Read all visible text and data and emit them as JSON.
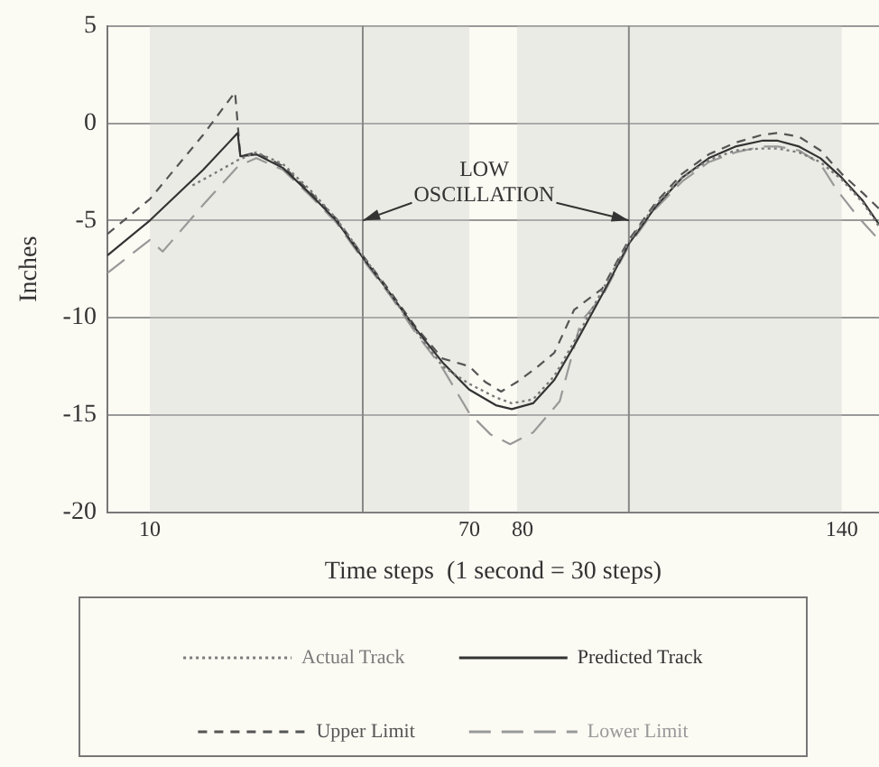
{
  "chart_data": {
    "type": "line",
    "xlabel": "Time steps  (1 second = 30 steps)",
    "ylabel": "Inches",
    "xlim": [
      2,
      147
    ],
    "xticks": [
      10,
      70,
      80,
      140
    ],
    "ylim": [
      -20,
      5
    ],
    "yticks": [
      5,
      0,
      -5,
      -10,
      -15,
      -20
    ],
    "grid": "y",
    "legend": "bottom",
    "marker": "none",
    "annotations": [
      {
        "text": "LOW OSCILLATION",
        "x": 50,
        "y": -5
      }
    ],
    "ref_lines": [
      {
        "axis": "x",
        "value": 50,
        "color": "#888888"
      },
      {
        "axis": "x",
        "value": 100,
        "color": "#888888"
      }
    ],
    "bands": [
      {
        "axis": "x",
        "from": 10,
        "to": 70,
        "color": "#cfcfcb"
      },
      {
        "axis": "x",
        "from": 79,
        "to": 140,
        "color": "#cfcfcb"
      }
    ],
    "series": [
      {
        "name": "Actual Track",
        "color": "#7a7a7a",
        "line_style": "dotted",
        "x": [
          18,
          22,
          26.5,
          30,
          35,
          40,
          45,
          50,
          55,
          60,
          65,
          70,
          75,
          78,
          82,
          86,
          90,
          95,
          100,
          105,
          110,
          115,
          120,
          125,
          128,
          132,
          136,
          140,
          144,
          147
        ],
        "values": [
          -3.2,
          -2.6,
          -1.9,
          -1.5,
          -2.1,
          -3.4,
          -4.9,
          -6.8,
          -8.7,
          -10.7,
          -12.5,
          -13.4,
          -14.1,
          -14.4,
          -14.2,
          -13.0,
          -11.1,
          -8.6,
          -6.1,
          -4.2,
          -2.8,
          -1.9,
          -1.4,
          -1.3,
          -1.3,
          -1.5,
          -2.0,
          -2.9,
          -4.1,
          -5.3
        ]
      },
      {
        "name": "Predicted Track",
        "color": "#333333",
        "line_style": "solid",
        "x": [
          2,
          10,
          20,
          26.5,
          27,
          30,
          35,
          40,
          45,
          50,
          55,
          60,
          65,
          70,
          75,
          78,
          82,
          86,
          90,
          95,
          100,
          105,
          110,
          115,
          120,
          125,
          128,
          132,
          136,
          140,
          144,
          147
        ],
        "values": [
          -6.8,
          -5.0,
          -2.4,
          -0.5,
          -1.7,
          -1.6,
          -2.3,
          -3.6,
          -5.0,
          -6.9,
          -8.7,
          -10.6,
          -12.3,
          -13.7,
          -14.5,
          -14.7,
          -14.4,
          -13.2,
          -11.3,
          -8.8,
          -6.2,
          -4.3,
          -2.8,
          -1.8,
          -1.2,
          -0.9,
          -0.9,
          -1.2,
          -1.8,
          -2.8,
          -4.0,
          -5.2
        ]
      },
      {
        "name": "Upper Limit",
        "color": "#555555",
        "line_style": "dashed",
        "x": [
          2,
          10,
          20,
          26,
          27,
          30,
          35,
          40,
          45,
          50,
          55,
          60,
          65,
          70,
          73,
          76,
          79,
          82.5,
          86,
          89.7,
          95,
          100,
          105,
          110,
          115,
          120,
          125,
          128,
          132,
          136,
          140,
          144,
          147
        ],
        "values": [
          -5.7,
          -3.9,
          -0.6,
          1.6,
          -1.7,
          -1.5,
          -2.2,
          -3.5,
          -4.9,
          -6.8,
          -8.6,
          -10.5,
          -12.1,
          -12.5,
          -13.3,
          -13.8,
          -13.3,
          -12.6,
          -11.8,
          -9.6,
          -8.5,
          -6.0,
          -4.1,
          -2.6,
          -1.6,
          -1.0,
          -0.6,
          -0.5,
          -0.7,
          -1.4,
          -2.6,
          -3.6,
          -4.4
        ]
      },
      {
        "name": "Lower Limit",
        "color": "#999999",
        "line_style": "dashed",
        "x": [
          2,
          10,
          12.4,
          20,
          26.6,
          30,
          35,
          40,
          45,
          50,
          55,
          60,
          65,
          70,
          74,
          77.7,
          82,
          87,
          91,
          95,
          100,
          105,
          110,
          115,
          120,
          125,
          128,
          132,
          136,
          139,
          143,
          147
        ],
        "values": [
          -7.7,
          -6.0,
          -6.6,
          -4.2,
          -2.2,
          -1.8,
          -2.4,
          -3.7,
          -5.1,
          -7.0,
          -8.8,
          -10.8,
          -12.6,
          -14.9,
          -16.0,
          -16.5,
          -15.9,
          -14.3,
          -10.2,
          -8.9,
          -6.3,
          -4.4,
          -3.0,
          -2.0,
          -1.5,
          -1.2,
          -1.2,
          -1.4,
          -2.1,
          -3.4,
          -4.8,
          -6.0
        ]
      }
    ]
  }
}
